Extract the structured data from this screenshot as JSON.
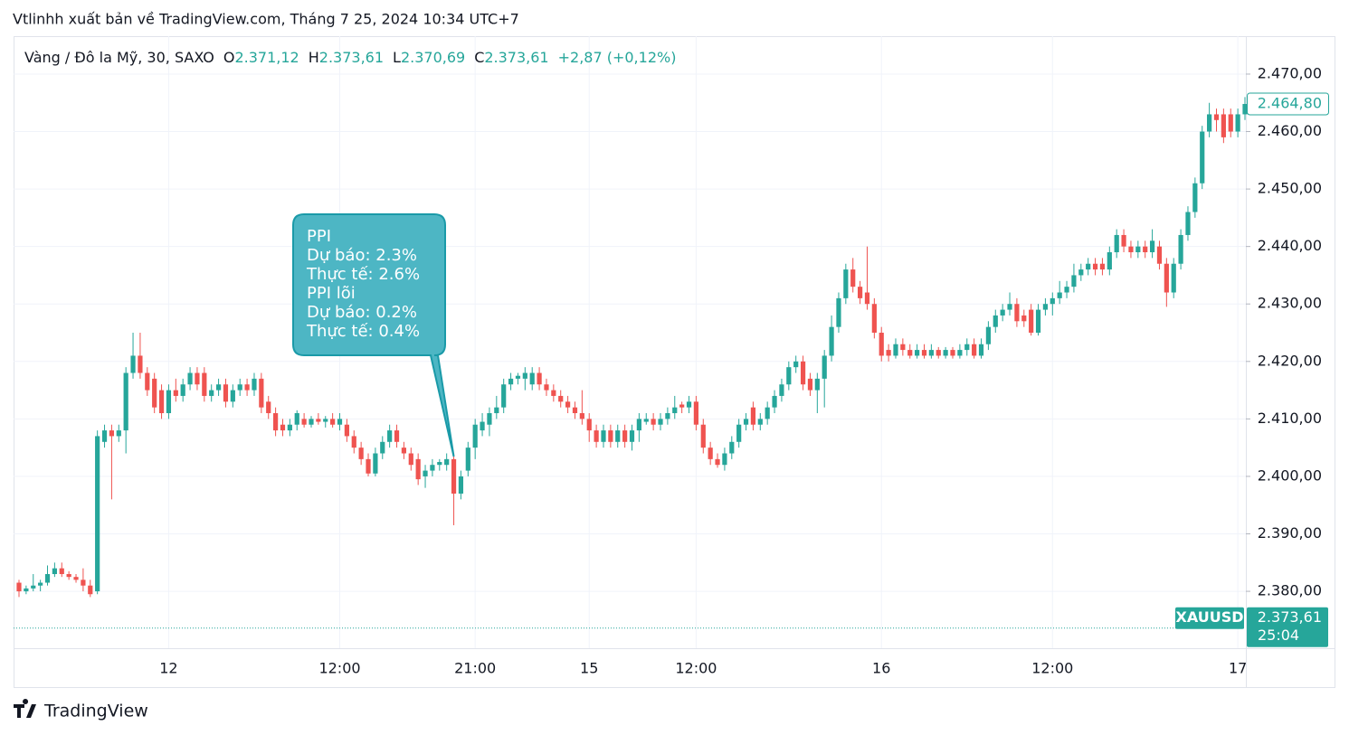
{
  "header": "Vtlinhh xuất bản về TradingView.com, Tháng 7 25, 2024 10:34 UTC+7",
  "footer": "TradingView",
  "chart_data": {
    "type": "candlestick",
    "symbol_title": "Vàng / Đô la Mỹ, 30, SAXO",
    "ohlc_legend": [
      {
        "key": "O",
        "value": "2.371,12"
      },
      {
        "key": "H",
        "value": "2.373,61"
      },
      {
        "key": "L",
        "value": "2.370,69"
      },
      {
        "key": "C",
        "value": "2.373,61"
      }
    ],
    "change": "+2,87 (+0,12%)",
    "up_color": "#26a69a",
    "down_color": "#ef5350",
    "grid": true,
    "ylim": [
      2370.1,
      2476.6
    ],
    "yticks": [
      {
        "value": 2380,
        "label": "2.380,00"
      },
      {
        "value": 2390,
        "label": "2.390,00"
      },
      {
        "value": 2400,
        "label": "2.400,00"
      },
      {
        "value": 2410,
        "label": "2.410,00"
      },
      {
        "value": 2420,
        "label": "2.420,00"
      },
      {
        "value": 2430,
        "label": "2.430,00"
      },
      {
        "value": 2440,
        "label": "2.440,00"
      },
      {
        "value": 2450,
        "label": "2.450,00"
      },
      {
        "value": 2460,
        "label": "2.460,00"
      },
      {
        "value": 2470,
        "label": "2.470,00"
      }
    ],
    "last_price": {
      "value": 2464.8,
      "label": "2.464,80"
    },
    "symbol_price": {
      "symbol": "XAUUSD",
      "value": 2373.61,
      "label": "2.373,61",
      "countdown": "25:04"
    },
    "annotation": {
      "lines": [
        "PPI",
        "Dự báo: 2.3%",
        "Thực tế: 2.6%",
        "PPI lõi",
        "Dự báo: 0.2%",
        "Thực tế: 0.4%"
      ]
    },
    "categories": [
      null,
      null,
      null,
      null,
      null,
      null,
      null,
      null,
      null,
      null,
      null,
      null,
      null,
      null,
      null,
      null,
      null,
      null,
      null,
      null,
      null,
      "12",
      null,
      null,
      null,
      null,
      null,
      null,
      null,
      null,
      null,
      null,
      null,
      null,
      null,
      null,
      null,
      null,
      null,
      null,
      null,
      null,
      null,
      null,
      null,
      "12:00",
      null,
      null,
      null,
      null,
      null,
      null,
      null,
      null,
      null,
      null,
      null,
      null,
      null,
      null,
      null,
      null,
      null,
      null,
      "21:00",
      null,
      null,
      null,
      null,
      null,
      null,
      null,
      null,
      null,
      null,
      null,
      null,
      null,
      null,
      null,
      "15",
      null,
      null,
      null,
      null,
      null,
      null,
      null,
      null,
      null,
      null,
      null,
      null,
      null,
      null,
      "12:00",
      null,
      null,
      null,
      null,
      null,
      null,
      null,
      null,
      null,
      null,
      null,
      null,
      null,
      null,
      null,
      null,
      null,
      null,
      null,
      null,
      null,
      null,
      null,
      null,
      null,
      "16",
      null,
      null,
      null,
      null,
      null,
      null,
      null,
      null,
      null,
      null,
      null,
      null,
      null,
      null,
      null,
      null,
      null,
      null,
      null,
      null,
      null,
      null,
      null,
      "12:00",
      null,
      null,
      null,
      null,
      null,
      null,
      null,
      null,
      null,
      null,
      null,
      null,
      null,
      null,
      null,
      null,
      null,
      null,
      null,
      null,
      null,
      null,
      null,
      null,
      null,
      "17",
      null
    ],
    "candles": [
      [
        2381.5,
        2382,
        2379,
        2380
      ],
      [
        2380,
        2381,
        2379.5,
        2380.5
      ],
      [
        2380.5,
        2383,
        2380,
        2381
      ],
      [
        2381,
        2382,
        2380,
        2381.5
      ],
      [
        2381.5,
        2384.5,
        2381,
        2383
      ],
      [
        2383,
        2385,
        2382.5,
        2384
      ],
      [
        2384,
        2385,
        2382.5,
        2383
      ],
      [
        2383,
        2383.5,
        2382,
        2382.5
      ],
      [
        2382.5,
        2383,
        2381.5,
        2382
      ],
      [
        2382,
        2384,
        2380,
        2381
      ],
      [
        2381,
        2382,
        2379,
        2379.5
      ],
      [
        2380,
        2408,
        2379.5,
        2407
      ],
      [
        2406,
        2409,
        2405,
        2408
      ],
      [
        2408,
        2409,
        2396,
        2407
      ],
      [
        2407,
        2409,
        2406,
        2408
      ],
      [
        2408,
        2419,
        2404,
        2418
      ],
      [
        2418,
        2425,
        2417,
        2421
      ],
      [
        2421,
        2425,
        2417,
        2418
      ],
      [
        2418,
        2419,
        2414,
        2415
      ],
      [
        2417,
        2418,
        2411,
        2412
      ],
      [
        2415,
        2416,
        2410,
        2411
      ],
      [
        2411,
        2416,
        2410,
        2415
      ],
      [
        2415,
        2417,
        2413,
        2414
      ],
      [
        2414,
        2417,
        2413,
        2416
      ],
      [
        2416,
        2419,
        2415,
        2418
      ],
      [
        2418,
        2419,
        2415,
        2416
      ],
      [
        2418,
        2419,
        2413,
        2414
      ],
      [
        2414,
        2416,
        2413,
        2415
      ],
      [
        2415,
        2417,
        2414,
        2416
      ],
      [
        2416,
        2417,
        2412,
        2413
      ],
      [
        2413,
        2416,
        2412,
        2415
      ],
      [
        2415,
        2417,
        2414,
        2416
      ],
      [
        2416,
        2417,
        2414,
        2415
      ],
      [
        2415,
        2418,
        2414,
        2417
      ],
      [
        2417,
        2418,
        2411,
        2412
      ],
      [
        2413,
        2414,
        2410,
        2411
      ],
      [
        2411,
        2412,
        2407,
        2408
      ],
      [
        2409,
        2410,
        2407,
        2408
      ],
      [
        2408,
        2410,
        2407,
        2409
      ],
      [
        2409,
        2411.5,
        2408,
        2411
      ],
      [
        2410,
        2411,
        2408.5,
        2409
      ],
      [
        2409,
        2410.5,
        2408.5,
        2410
      ],
      [
        2410,
        2411,
        2409,
        2409.5
      ],
      [
        2409.5,
        2410.5,
        2408.5,
        2410
      ],
      [
        2410,
        2411,
        2408.5,
        2409
      ],
      [
        2409,
        2411,
        2408,
        2410
      ],
      [
        2409,
        2410,
        2406,
        2407
      ],
      [
        2407,
        2408,
        2404,
        2405
      ],
      [
        2405,
        2406,
        2402,
        2403
      ],
      [
        2403,
        2404,
        2400,
        2400.5
      ],
      [
        2400.5,
        2405,
        2400,
        2404
      ],
      [
        2404,
        2407,
        2403,
        2406
      ],
      [
        2406,
        2409,
        2405,
        2408
      ],
      [
        2408,
        2409,
        2405,
        2406
      ],
      [
        2405,
        2406,
        2403,
        2404
      ],
      [
        2404,
        2405,
        2401,
        2402
      ],
      [
        2403,
        2404,
        2398.5,
        2399.5
      ],
      [
        2400,
        2402,
        2398,
        2401
      ],
      [
        2401,
        2403,
        2400,
        2402
      ],
      [
        2402,
        2403,
        2401,
        2402.5
      ],
      [
        2402,
        2404,
        2401,
        2403
      ],
      [
        2403,
        2404,
        2391.5,
        2397
      ],
      [
        2397,
        2401,
        2396,
        2400
      ],
      [
        2401,
        2406,
        2400,
        2405
      ],
      [
        2405,
        2410,
        2403,
        2409
      ],
      [
        2408,
        2411,
        2407,
        2409.5
      ],
      [
        2409,
        2412,
        2407,
        2411
      ],
      [
        2411,
        2414,
        2410,
        2412
      ],
      [
        2412,
        2417,
        2411,
        2416
      ],
      [
        2416,
        2418,
        2415,
        2417
      ],
      [
        2417,
        2418,
        2416,
        2417.5
      ],
      [
        2417,
        2419,
        2415,
        2418
      ],
      [
        2416,
        2419,
        2415,
        2418
      ],
      [
        2418,
        2419,
        2415,
        2416
      ],
      [
        2416,
        2417,
        2414,
        2415
      ],
      [
        2415,
        2416,
        2413,
        2414
      ],
      [
        2414,
        2415,
        2412,
        2413
      ],
      [
        2413,
        2414,
        2411,
        2412
      ],
      [
        2412,
        2413,
        2410,
        2411
      ],
      [
        2411,
        2415,
        2409,
        2410
      ],
      [
        2410,
        2411,
        2406,
        2408
      ],
      [
        2408,
        2409,
        2405,
        2406
      ],
      [
        2406,
        2409,
        2405,
        2408
      ],
      [
        2408,
        2409,
        2405,
        2406
      ],
      [
        2406,
        2409,
        2405,
        2408
      ],
      [
        2408,
        2409,
        2405,
        2406
      ],
      [
        2406,
        2409,
        2404.5,
        2408
      ],
      [
        2408,
        2411,
        2406,
        2410
      ],
      [
        2409.5,
        2411,
        2409,
        2410
      ],
      [
        2410,
        2411,
        2408,
        2409
      ],
      [
        2409,
        2411,
        2408,
        2410
      ],
      [
        2410,
        2412,
        2409,
        2411
      ],
      [
        2411,
        2414,
        2410,
        2412
      ],
      [
        2412.5,
        2413,
        2411,
        2412
      ],
      [
        2412,
        2414,
        2411,
        2413
      ],
      [
        2413,
        2414,
        2408,
        2409
      ],
      [
        2409,
        2410,
        2404,
        2405
      ],
      [
        2405,
        2406,
        2402,
        2403
      ],
      [
        2403,
        2404,
        2401.5,
        2402
      ],
      [
        2402,
        2405,
        2401,
        2404
      ],
      [
        2404,
        2407,
        2403,
        2406
      ],
      [
        2406,
        2410,
        2405,
        2409
      ],
      [
        2409,
        2411,
        2408,
        2410
      ],
      [
        2412,
        2413,
        2408,
        2409
      ],
      [
        2409,
        2411,
        2408,
        2410
      ],
      [
        2410,
        2413,
        2409,
        2412
      ],
      [
        2412,
        2415,
        2411,
        2414
      ],
      [
        2414,
        2417,
        2413,
        2416
      ],
      [
        2416,
        2420,
        2415,
        2419
      ],
      [
        2419,
        2421,
        2418,
        2420
      ],
      [
        2420,
        2421,
        2415,
        2416
      ],
      [
        2417,
        2418,
        2414,
        2415
      ],
      [
        2415,
        2418,
        2411,
        2417
      ],
      [
        2417,
        2422,
        2412,
        2421
      ],
      [
        2421,
        2428,
        2420,
        2426
      ],
      [
        2426,
        2432,
        2425,
        2431
      ],
      [
        2431,
        2437,
        2430,
        2436
      ],
      [
        2436,
        2438,
        2432,
        2433
      ],
      [
        2433,
        2434,
        2430,
        2431
      ],
      [
        2432,
        2440,
        2429,
        2430
      ],
      [
        2430,
        2431,
        2424,
        2425
      ],
      [
        2425,
        2426,
        2420,
        2421
      ],
      [
        2422,
        2423,
        2420,
        2421
      ],
      [
        2421,
        2424,
        2420.5,
        2423
      ],
      [
        2423,
        2424,
        2421,
        2422
      ],
      [
        2422,
        2423,
        2420.5,
        2421
      ],
      [
        2421,
        2423,
        2420.5,
        2422
      ],
      [
        2422,
        2423,
        2420.5,
        2421
      ],
      [
        2421,
        2423,
        2420.5,
        2422
      ],
      [
        2422,
        2422.5,
        2420.5,
        2421
      ],
      [
        2421,
        2422.5,
        2420.5,
        2422
      ],
      [
        2422,
        2422.5,
        2420.5,
        2421
      ],
      [
        2421,
        2423,
        2420.5,
        2422
      ],
      [
        2422,
        2424,
        2421,
        2423
      ],
      [
        2423,
        2424,
        2420.5,
        2421
      ],
      [
        2421,
        2424,
        2420.5,
        2423
      ],
      [
        2423,
        2427,
        2422,
        2426
      ],
      [
        2426,
        2429,
        2425,
        2428
      ],
      [
        2428,
        2430,
        2427,
        2429
      ],
      [
        2429,
        2432,
        2428,
        2430
      ],
      [
        2430,
        2431,
        2426,
        2427
      ],
      [
        2428,
        2429,
        2426,
        2427
      ],
      [
        2429,
        2430,
        2424.5,
        2425
      ],
      [
        2425,
        2430,
        2424.5,
        2429
      ],
      [
        2429,
        2431,
        2428,
        2430
      ],
      [
        2430,
        2432,
        2428,
        2431
      ],
      [
        2431,
        2434,
        2430,
        2432
      ],
      [
        2432,
        2434,
        2431,
        2433
      ],
      [
        2433,
        2437,
        2432,
        2435
      ],
      [
        2435,
        2437,
        2434,
        2436
      ],
      [
        2436,
        2438,
        2435,
        2437
      ],
      [
        2437,
        2438,
        2435,
        2436
      ],
      [
        2437,
        2438,
        2435,
        2436
      ],
      [
        2436,
        2440,
        2435,
        2439
      ],
      [
        2439,
        2443,
        2438,
        2442
      ],
      [
        2442,
        2443,
        2439,
        2440
      ],
      [
        2440,
        2441,
        2438,
        2439
      ],
      [
        2439,
        2441,
        2438,
        2440
      ],
      [
        2440,
        2441,
        2438,
        2439
      ],
      [
        2439,
        2443,
        2438,
        2441
      ],
      [
        2440,
        2441,
        2436,
        2437
      ],
      [
        2437,
        2438,
        2429.5,
        2432
      ],
      [
        2432,
        2438,
        2431,
        2437
      ],
      [
        2437,
        2443,
        2436,
        2442
      ],
      [
        2442,
        2447,
        2441,
        2446
      ],
      [
        2446,
        2452,
        2445,
        2451
      ],
      [
        2451,
        2461,
        2450,
        2460
      ],
      [
        2460,
        2465,
        2459,
        2463
      ],
      [
        2463,
        2464,
        2460,
        2462
      ],
      [
        2463,
        2464,
        2458,
        2459
      ],
      [
        2463,
        2464,
        2459,
        2460
      ],
      [
        2460,
        2464,
        2459,
        2463
      ],
      [
        2463,
        2466,
        2462,
        2464.8
      ]
    ]
  }
}
